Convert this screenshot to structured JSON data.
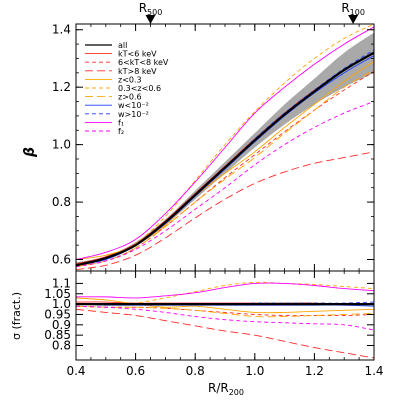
{
  "chart_data": [
    {
      "type": "line",
      "panel": "top",
      "xlabel": "",
      "ylabel": "β",
      "xlim": [
        0.4,
        1.4
      ],
      "ylim": [
        0.56,
        1.42
      ],
      "x_ticks": [
        0.4,
        0.6,
        0.8,
        1.0,
        1.2,
        1.4
      ],
      "y_ticks": [
        0.6,
        0.8,
        1.0,
        1.2,
        1.4
      ],
      "y_tick_labels": [
        "0.6",
        "0.8",
        "1.0",
        "1.2",
        "1.4"
      ],
      "grid": false,
      "legend_position": "top-left",
      "markers": [
        {
          "label": "R",
          "sub": "500",
          "x": 0.65
        },
        {
          "label": "R",
          "sub": "100",
          "x": 1.33
        }
      ],
      "band": {
        "x": [
          0.4,
          0.5,
          0.6,
          0.7,
          0.8,
          0.9,
          1.0,
          1.1,
          1.2,
          1.3,
          1.4
        ],
        "lower": [
          0.572,
          0.6,
          0.645,
          0.72,
          0.81,
          0.9,
          0.99,
          1.07,
          1.14,
          1.2,
          1.25
        ],
        "upper": [
          0.59,
          0.61,
          0.66,
          0.74,
          0.84,
          0.94,
          1.04,
          1.14,
          1.23,
          1.32,
          1.39
        ]
      },
      "x": [
        0.4,
        0.5,
        0.6,
        0.7,
        0.8,
        0.9,
        1.0,
        1.1,
        1.2,
        1.3,
        1.4
      ],
      "series": [
        {
          "name": "all",
          "color": "#000000",
          "dash": "solid",
          "values": [
            0.58,
            0.605,
            0.65,
            0.73,
            0.825,
            0.92,
            1.015,
            1.105,
            1.185,
            1.26,
            1.32
          ]
        },
        {
          "name": "kT<6 keV",
          "color": "#ff2a2a",
          "dash": "solid",
          "values": [
            0.585,
            0.61,
            0.655,
            0.735,
            0.83,
            0.925,
            1.02,
            1.11,
            1.19,
            1.26,
            1.32
          ]
        },
        {
          "name": "6<kT<8 keV",
          "color": "#ff2a2a",
          "dash": "dash",
          "values": [
            0.575,
            0.595,
            0.64,
            0.715,
            0.8,
            0.885,
            0.965,
            1.045,
            1.12,
            1.19,
            1.255
          ]
        },
        {
          "name": "kT>8 keV",
          "color": "#ff2a2a",
          "dash": "longdash",
          "values": [
            0.565,
            0.58,
            0.615,
            0.675,
            0.745,
            0.81,
            0.865,
            0.905,
            0.935,
            0.955,
            0.975
          ]
        },
        {
          "name": "z<0.3",
          "color": "#ffa500",
          "dash": "solid",
          "values": [
            0.6,
            0.615,
            0.65,
            0.72,
            0.82,
            0.9,
            0.975,
            1.06,
            1.14,
            1.22,
            1.29
          ]
        },
        {
          "name": "0.3<z<0.6",
          "color": "#ffa500",
          "dash": "dash",
          "values": [
            0.58,
            0.6,
            0.655,
            0.75,
            0.875,
            1.0,
            1.115,
            1.215,
            1.3,
            1.37,
            1.42
          ]
        },
        {
          "name": "z>0.6",
          "color": "#ffa500",
          "dash": "longdash",
          "values": [
            0.575,
            0.595,
            0.64,
            0.715,
            0.8,
            0.88,
            0.955,
            1.04,
            1.12,
            1.2,
            1.26
          ]
        },
        {
          "name": "w<10⁻²",
          "color": "#1a3cff",
          "dash": "solid",
          "values": [
            0.58,
            0.6,
            0.648,
            0.725,
            0.82,
            0.915,
            1.01,
            1.1,
            1.18,
            1.25,
            1.31
          ]
        },
        {
          "name": "w>10⁻²",
          "color": "#1a3cff",
          "dash": "dash",
          "values": [
            0.58,
            0.603,
            0.65,
            0.73,
            0.825,
            0.92,
            1.02,
            1.11,
            1.19,
            1.265,
            1.33
          ]
        },
        {
          "name": "f₁",
          "color": "#ff00ff",
          "dash": "solid",
          "values": [
            0.6,
            0.625,
            0.67,
            0.76,
            0.87,
            0.99,
            1.11,
            1.2,
            1.28,
            1.35,
            1.41
          ]
        },
        {
          "name": "f₂",
          "color": "#ff00ff",
          "dash": "dash",
          "values": [
            0.575,
            0.595,
            0.635,
            0.7,
            0.775,
            0.85,
            0.93,
            1.0,
            1.06,
            1.11,
            1.15
          ]
        }
      ]
    },
    {
      "type": "line",
      "panel": "bottom",
      "xlabel": "R/R200",
      "xlabel_main": "R/R",
      "xlabel_sub": "200",
      "ylabel": "σ (fract.)",
      "xlim": [
        0.4,
        1.4
      ],
      "ylim": [
        0.73,
        1.16
      ],
      "x_ticks": [
        0.4,
        0.6,
        0.8,
        1.0,
        1.2,
        1.4
      ],
      "x_tick_labels": [
        "0.4",
        "0.6",
        "0.8",
        "1.0",
        "1.2",
        "1.4"
      ],
      "y_ticks": [
        0.8,
        0.85,
        0.9,
        0.95,
        1.0,
        1.05,
        1.1
      ],
      "y_tick_labels": [
        "0.8",
        "0.85",
        "0.9",
        "0.95",
        "1.0",
        "1.05",
        "1.1"
      ],
      "grid": false,
      "x": [
        0.4,
        0.5,
        0.6,
        0.7,
        0.8,
        0.9,
        1.0,
        1.1,
        1.2,
        1.3,
        1.4
      ],
      "series": [
        {
          "name": "all",
          "color": "#000000",
          "dash": "solid",
          "values": [
            1.0,
            1.0,
            1.0,
            1.0,
            1.0,
            1.0,
            1.0,
            1.0,
            1.0,
            1.0,
            1.0
          ]
        },
        {
          "name": "kT<6 keV",
          "color": "#ff2a2a",
          "dash": "solid",
          "values": [
            1.01,
            1.01,
            1.005,
            1.005,
            1.005,
            1.005,
            1.005,
            1.005,
            1.005,
            1.0,
            1.0
          ]
        },
        {
          "name": "6<kT<8 keV",
          "color": "#ff2a2a",
          "dash": "dash",
          "values": [
            0.99,
            0.985,
            0.985,
            0.98,
            0.97,
            0.96,
            0.95,
            0.945,
            0.945,
            0.945,
            0.95
          ]
        },
        {
          "name": "kT>8 keV",
          "color": "#ff2a2a",
          "dash": "longdash",
          "values": [
            0.975,
            0.96,
            0.945,
            0.92,
            0.895,
            0.87,
            0.85,
            0.82,
            0.79,
            0.765,
            0.74
          ]
        },
        {
          "name": "z<0.3",
          "color": "#ffa500",
          "dash": "solid",
          "values": [
            1.03,
            1.02,
            1.0,
            0.985,
            0.99,
            0.975,
            0.96,
            0.96,
            0.965,
            0.97,
            0.975
          ]
        },
        {
          "name": "0.3<z<0.6",
          "color": "#ffa500",
          "dash": "dash",
          "values": [
            1.0,
            0.995,
            1.005,
            1.03,
            1.06,
            1.09,
            1.105,
            1.1,
            1.095,
            1.085,
            1.075
          ]
        },
        {
          "name": "z>0.6",
          "color": "#ffa500",
          "dash": "longdash",
          "values": [
            0.99,
            0.985,
            0.985,
            0.98,
            0.97,
            0.955,
            0.94,
            0.94,
            0.945,
            0.95,
            0.955
          ]
        },
        {
          "name": "w<10⁻²",
          "color": "#1a3cff",
          "dash": "solid",
          "values": [
            1.0,
            0.995,
            0.995,
            0.995,
            0.995,
            0.995,
            0.995,
            0.995,
            0.995,
            0.995,
            0.99
          ]
        },
        {
          "name": "w>10⁻²",
          "color": "#1a3cff",
          "dash": "dash",
          "values": [
            1.0,
            1.0,
            1.0,
            1.0,
            1.0,
            1.0,
            1.005,
            1.005,
            1.005,
            1.005,
            1.01
          ]
        },
        {
          "name": "f₁",
          "color": "#ff00ff",
          "dash": "solid",
          "values": [
            1.035,
            1.035,
            1.03,
            1.04,
            1.055,
            1.08,
            1.1,
            1.1,
            1.09,
            1.075,
            1.065
          ]
        },
        {
          "name": "f₂",
          "color": "#ff00ff",
          "dash": "dash",
          "values": [
            0.99,
            0.985,
            0.975,
            0.96,
            0.94,
            0.925,
            0.915,
            0.91,
            0.905,
            0.9,
            0.875
          ]
        }
      ]
    }
  ]
}
